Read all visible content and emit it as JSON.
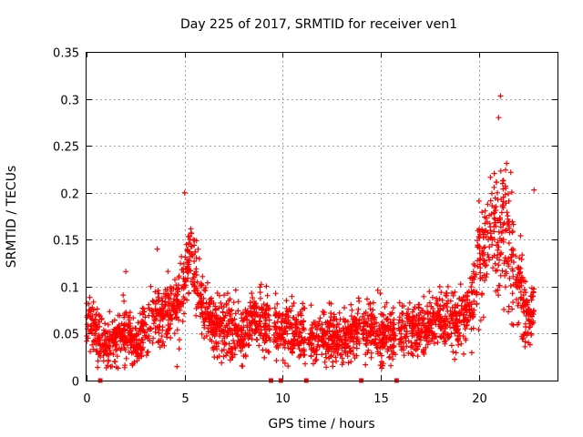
{
  "chart_data": {
    "type": "scatter",
    "title": "Day 225 of 2017, SRMTID for receiver ven1",
    "xlabel": "GPS time / hours",
    "ylabel": "SRMTID / TECUs",
    "xlim": [
      0,
      24
    ],
    "ylim": [
      0,
      0.35
    ],
    "x_ticks": [
      0,
      5,
      10,
      15,
      20
    ],
    "x_tick_labels": [
      "0",
      "5",
      "10",
      "15",
      "20"
    ],
    "y_ticks": [
      0,
      0.05,
      0.1,
      0.15,
      0.2,
      0.25,
      0.3,
      0.35
    ],
    "y_tick_labels": [
      "0",
      "0.05",
      "0.1",
      "0.15",
      "0.2",
      "0.25",
      "0.3",
      "0.35"
    ],
    "grid": true,
    "marker": "+",
    "colors": {
      "series": "#ff0000",
      "grid": "#a0a0a0"
    },
    "gap_markers_x": [
      0.7,
      9.4,
      9.9,
      11.2,
      14.0,
      15.8
    ],
    "series_profile": [
      {
        "x": 0.0,
        "y": 0.06,
        "spread": 0.018
      },
      {
        "x": 0.6,
        "y": 0.05,
        "spread": 0.018
      },
      {
        "x": 1.0,
        "y": 0.035,
        "spread": 0.015
      },
      {
        "x": 1.5,
        "y": 0.04,
        "spread": 0.015
      },
      {
        "x": 2.0,
        "y": 0.06,
        "spread": 0.02
      },
      {
        "x": 2.4,
        "y": 0.035,
        "spread": 0.015
      },
      {
        "x": 3.0,
        "y": 0.055,
        "spread": 0.02
      },
      {
        "x": 3.5,
        "y": 0.07,
        "spread": 0.02
      },
      {
        "x": 4.0,
        "y": 0.07,
        "spread": 0.02
      },
      {
        "x": 4.5,
        "y": 0.075,
        "spread": 0.02
      },
      {
        "x": 5.0,
        "y": 0.1,
        "spread": 0.025
      },
      {
        "x": 5.3,
        "y": 0.15,
        "spread": 0.03
      },
      {
        "x": 5.6,
        "y": 0.1,
        "spread": 0.025
      },
      {
        "x": 6.0,
        "y": 0.07,
        "spread": 0.02
      },
      {
        "x": 7.0,
        "y": 0.055,
        "spread": 0.02
      },
      {
        "x": 8.0,
        "y": 0.05,
        "spread": 0.02
      },
      {
        "x": 8.5,
        "y": 0.07,
        "spread": 0.02
      },
      {
        "x": 9.0,
        "y": 0.06,
        "spread": 0.02
      },
      {
        "x": 10.0,
        "y": 0.055,
        "spread": 0.018
      },
      {
        "x": 11.0,
        "y": 0.045,
        "spread": 0.018
      },
      {
        "x": 12.0,
        "y": 0.045,
        "spread": 0.018
      },
      {
        "x": 13.0,
        "y": 0.045,
        "spread": 0.018
      },
      {
        "x": 14.0,
        "y": 0.055,
        "spread": 0.018
      },
      {
        "x": 15.0,
        "y": 0.05,
        "spread": 0.018
      },
      {
        "x": 16.0,
        "y": 0.05,
        "spread": 0.018
      },
      {
        "x": 17.0,
        "y": 0.055,
        "spread": 0.018
      },
      {
        "x": 18.0,
        "y": 0.065,
        "spread": 0.018
      },
      {
        "x": 19.0,
        "y": 0.065,
        "spread": 0.018
      },
      {
        "x": 19.5,
        "y": 0.075,
        "spread": 0.02
      },
      {
        "x": 20.0,
        "y": 0.13,
        "spread": 0.04
      },
      {
        "x": 20.5,
        "y": 0.16,
        "spread": 0.04
      },
      {
        "x": 21.0,
        "y": 0.17,
        "spread": 0.045
      },
      {
        "x": 21.5,
        "y": 0.14,
        "spread": 0.045
      },
      {
        "x": 22.0,
        "y": 0.1,
        "spread": 0.03
      },
      {
        "x": 22.5,
        "y": 0.06,
        "spread": 0.02
      },
      {
        "x": 22.8,
        "y": 0.08,
        "spread": 0.02
      }
    ],
    "gaps": [
      [
        9.35,
        9.55
      ],
      [
        11.15,
        11.3
      ],
      [
        13.95,
        14.05
      ],
      [
        15.75,
        15.9
      ]
    ],
    "peaks": [
      {
        "x": 5.0,
        "y": 0.2
      },
      {
        "x": 21.1,
        "y": 0.303
      },
      {
        "x": 21.0,
        "y": 0.28
      },
      {
        "x": 3.6,
        "y": 0.14
      },
      {
        "x": 22.8,
        "y": 0.203
      }
    ],
    "point_count": 2600
  }
}
